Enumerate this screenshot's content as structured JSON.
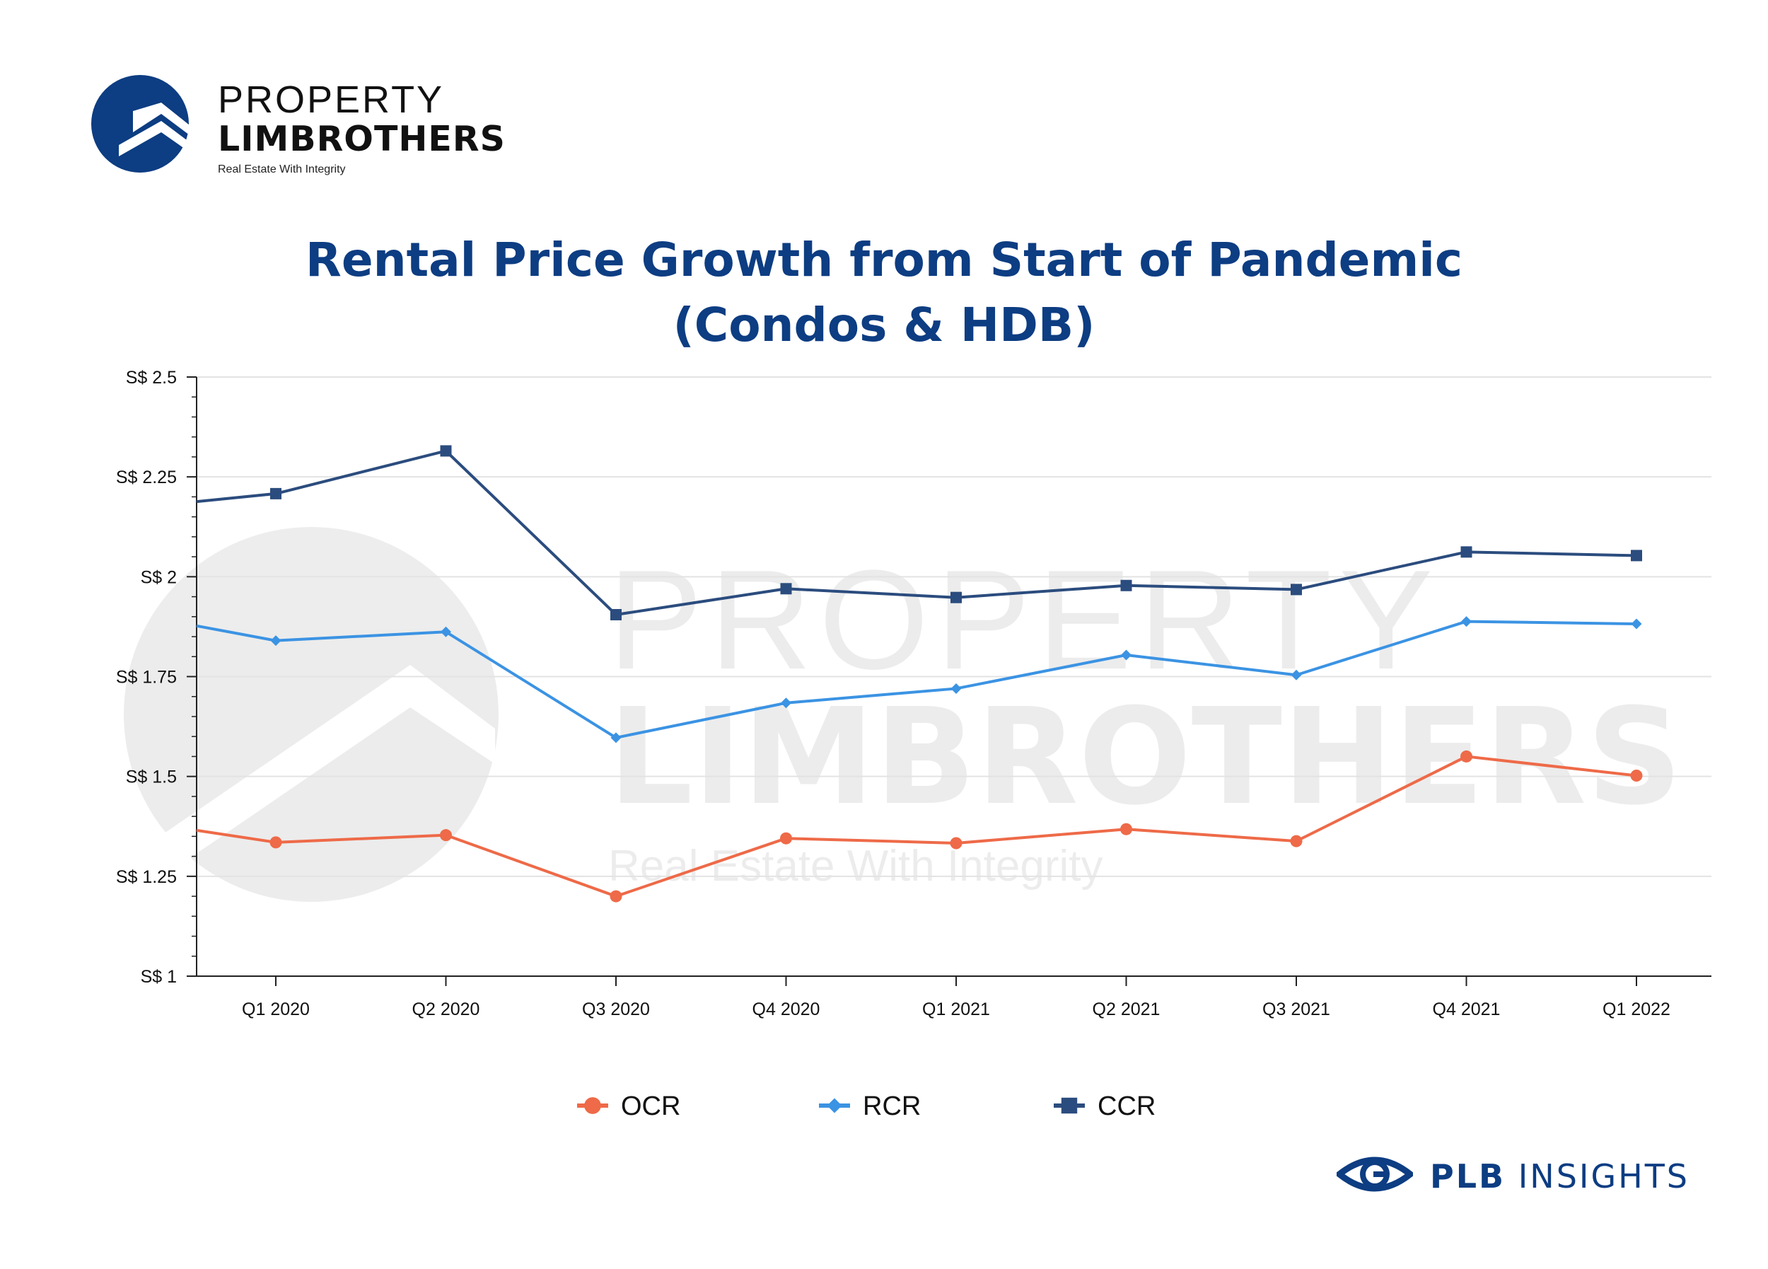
{
  "brand": {
    "line1": "PROPERTY",
    "line2": "LIMBROTHERS",
    "tagline": "Real Estate With Integrity"
  },
  "watermark": {
    "line1": "PROPERTY",
    "line2": "LIMBROTHERS",
    "tagline": "Real Estate With Integrity"
  },
  "footer": {
    "plb_bold": "PLB",
    "insights": "INSIGHTS",
    "icon": "eye-logo-icon"
  },
  "colors": {
    "title": "#0d3d82",
    "OCR": "#ee6a48",
    "RCR": "#3b93e3",
    "CCR": "#2b4c7e"
  },
  "chart_data": {
    "type": "line",
    "title": "Rental Price Growth from Start of Pandemic\n(Condos & HDB)",
    "title_lines": [
      "Rental Price Growth from Start of Pandemic",
      "(Condos & HDB)"
    ],
    "categories": [
      "Q1 2020",
      "Q2 2020",
      "Q3 2020",
      "Q4 2020",
      "Q1 2021",
      "Q2 2021",
      "Q3 2021",
      "Q4 2021",
      "Q1 2022"
    ],
    "series": [
      {
        "name": "OCR",
        "color": "#ee6a48",
        "marker": "circle",
        "lead_in": 1.365,
        "values": [
          1.335,
          1.353,
          1.2,
          1.345,
          1.333,
          1.368,
          1.338,
          1.55,
          1.502
        ]
      },
      {
        "name": "RCR",
        "color": "#3b93e3",
        "marker": "diamond",
        "lead_in": 1.877,
        "values": [
          1.84,
          1.862,
          1.597,
          1.684,
          1.72,
          1.804,
          1.754,
          1.888,
          1.882
        ]
      },
      {
        "name": "CCR",
        "color": "#2b4c7e",
        "marker": "square",
        "lead_in": 2.188,
        "values": [
          2.208,
          2.315,
          1.905,
          1.97,
          1.948,
          1.978,
          1.968,
          2.062,
          2.053
        ]
      }
    ],
    "ylim": [
      1,
      2.5
    ],
    "yticks": [
      {
        "value": 1,
        "label": "S$ 1"
      },
      {
        "value": 1.25,
        "label": "S$ 1.25"
      },
      {
        "value": 1.5,
        "label": "S$ 1.5"
      },
      {
        "value": 1.75,
        "label": "S$ 1.75"
      },
      {
        "value": 2,
        "label": "S$ 2"
      },
      {
        "value": 2.25,
        "label": "S$ 2.25"
      },
      {
        "value": 2.5,
        "label": "S$ 2.5"
      }
    ],
    "xlabel": "",
    "ylabel": "",
    "grid": true,
    "legend_position": "bottom-center"
  }
}
